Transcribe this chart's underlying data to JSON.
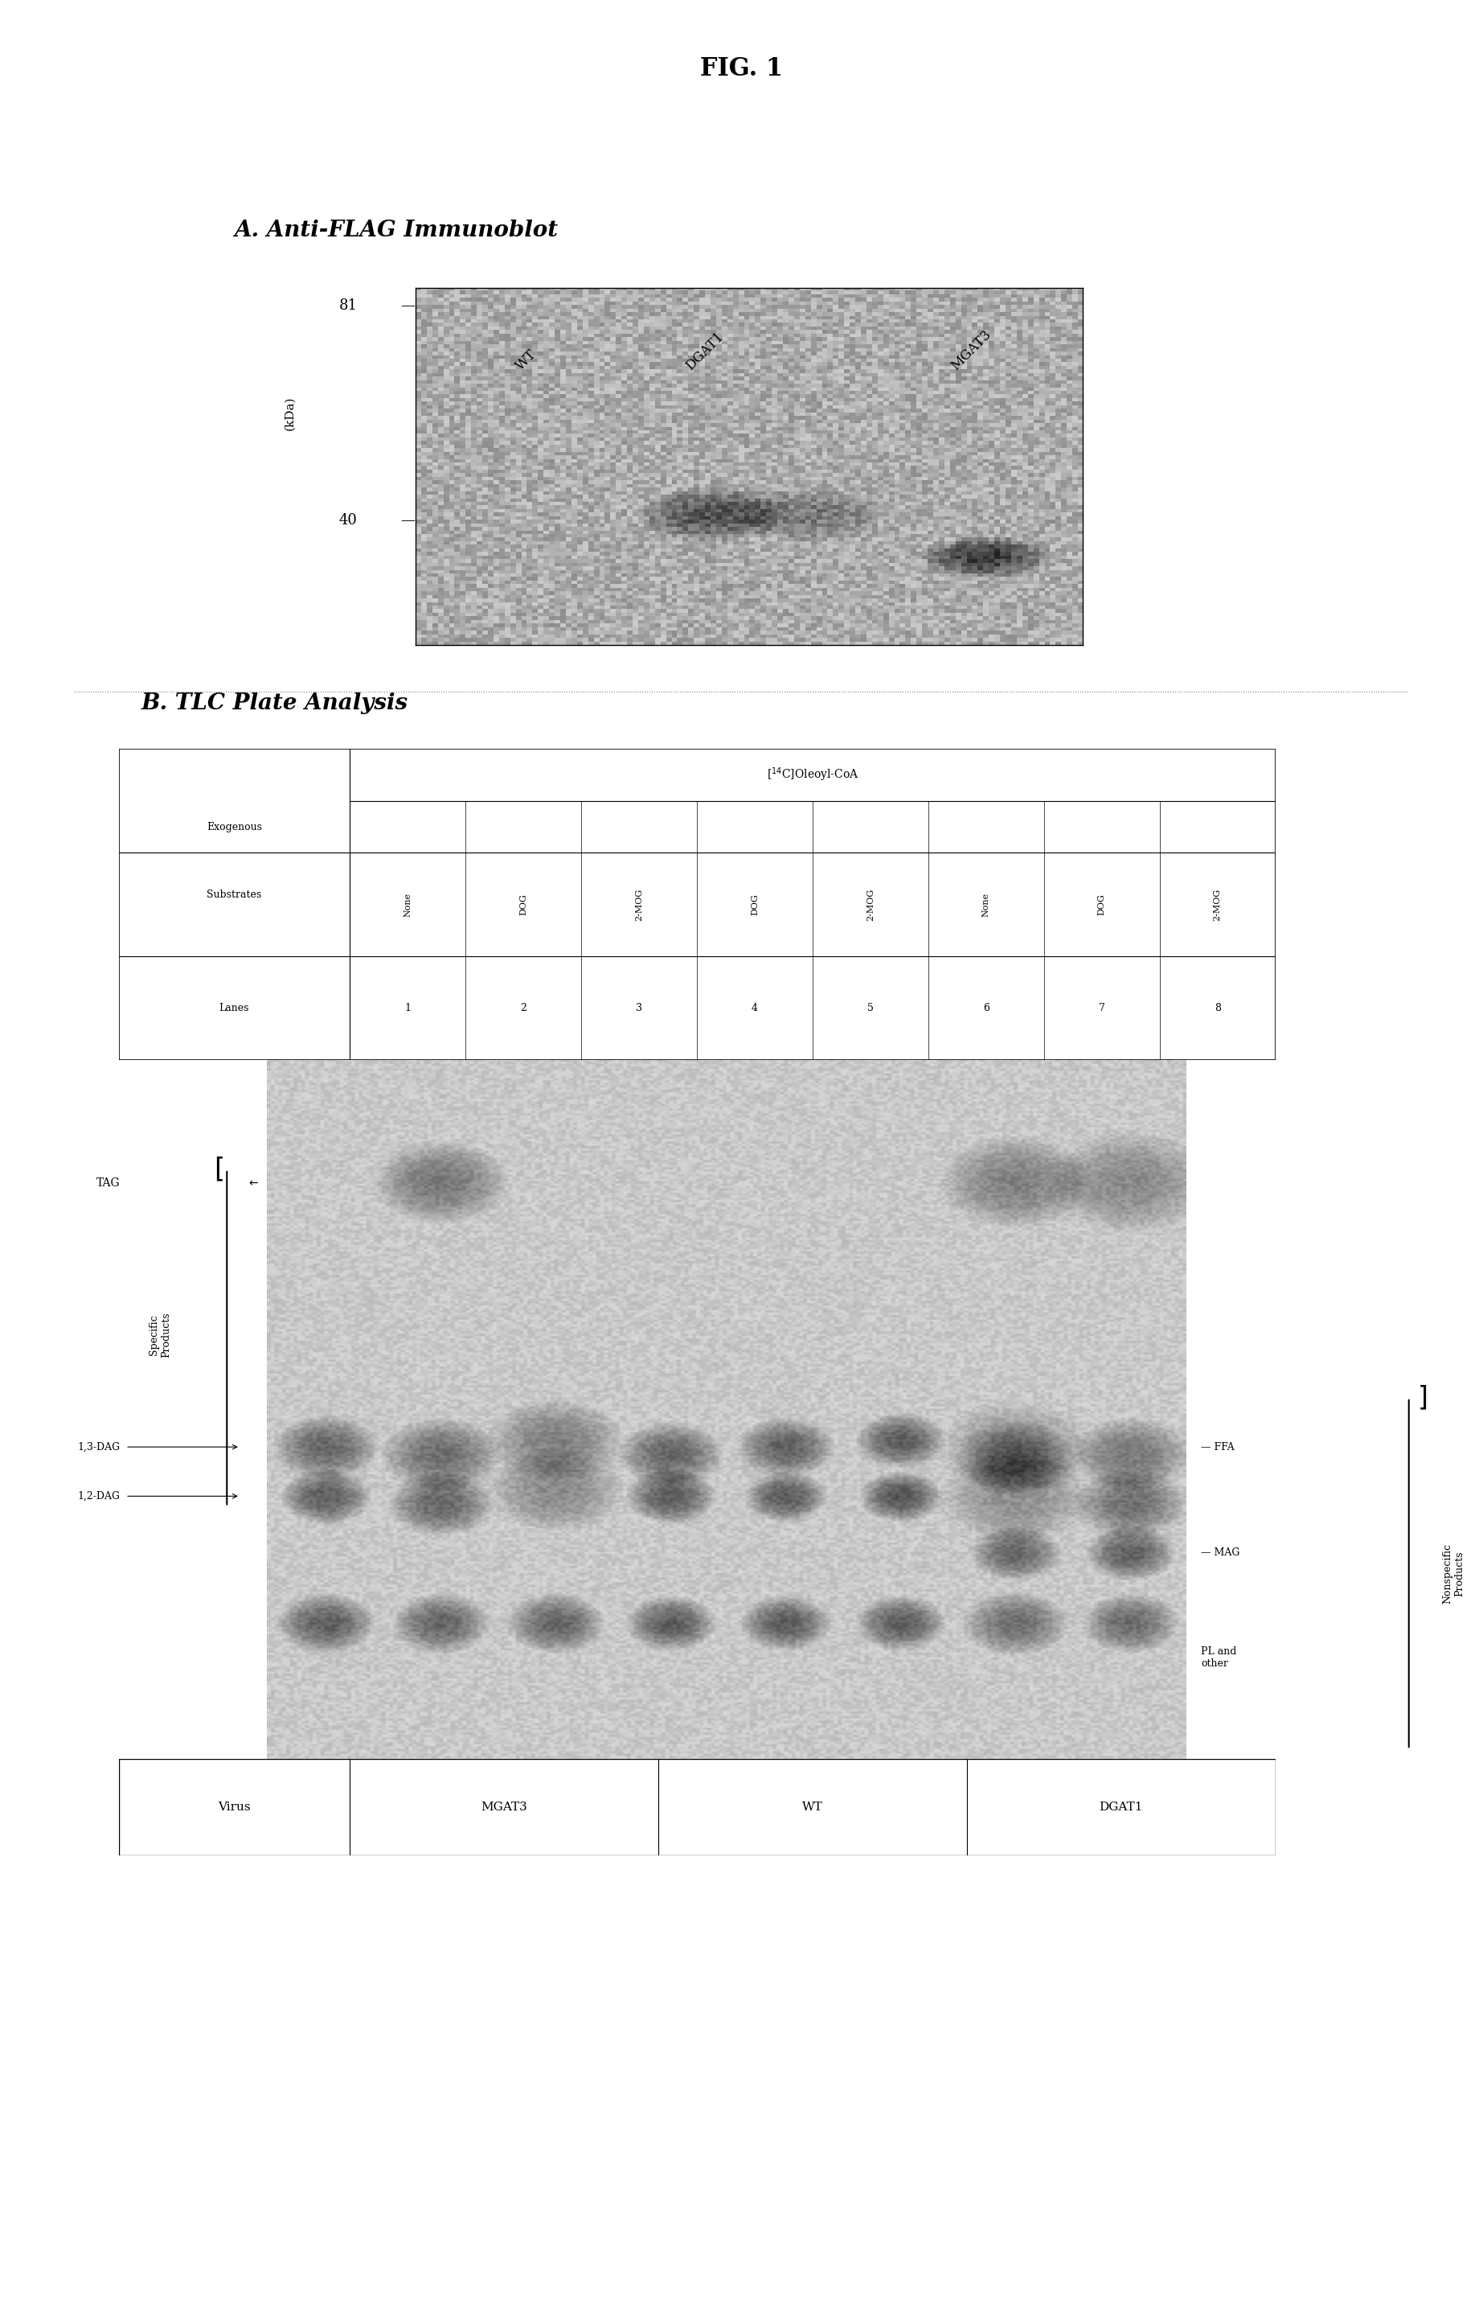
{
  "title": "FIG. 1",
  "panel_a_title": "A. Anti-FLAG Immunoblot",
  "panel_b_title": "B. TLC Plate Analysis",
  "blot_labels": [
    "WT",
    "DGAT1",
    "MGAT3"
  ],
  "kda_labels": [
    "81",
    "40"
  ],
  "kda_unit": "(kDa)",
  "table_header_left": [
    "Exogenous",
    "Substrates"
  ],
  "table_header_center": "[14C]Oleoyl-CoA",
  "table_substrates": [
    "None",
    "DOG",
    "2-MOG",
    "DOG",
    "2-MOG",
    "None",
    "DOG",
    "2-MOG"
  ],
  "table_lanes": [
    "1",
    "2",
    "3",
    "4",
    "5",
    "6",
    "7",
    "8"
  ],
  "lanes_label": "Lanes",
  "specific_products_label": "Specific Products",
  "nonspecific_label": "Nonspecific Products",
  "tlc_labels_left": [
    "TAG",
    "1,3-DAG",
    "1,2-DAG"
  ],
  "tlc_labels_right": [
    "FFA",
    "MAG",
    "PL and\nother"
  ],
  "virus_label": "Virus",
  "virus_groups": [
    "MGAT3",
    "WT",
    "DGAT1"
  ],
  "bg_color": "#ffffff",
  "blot_bg": "#c0c0c0",
  "tlc_bg": "#d0ccc0",
  "table_bg": "#f5f5f5"
}
